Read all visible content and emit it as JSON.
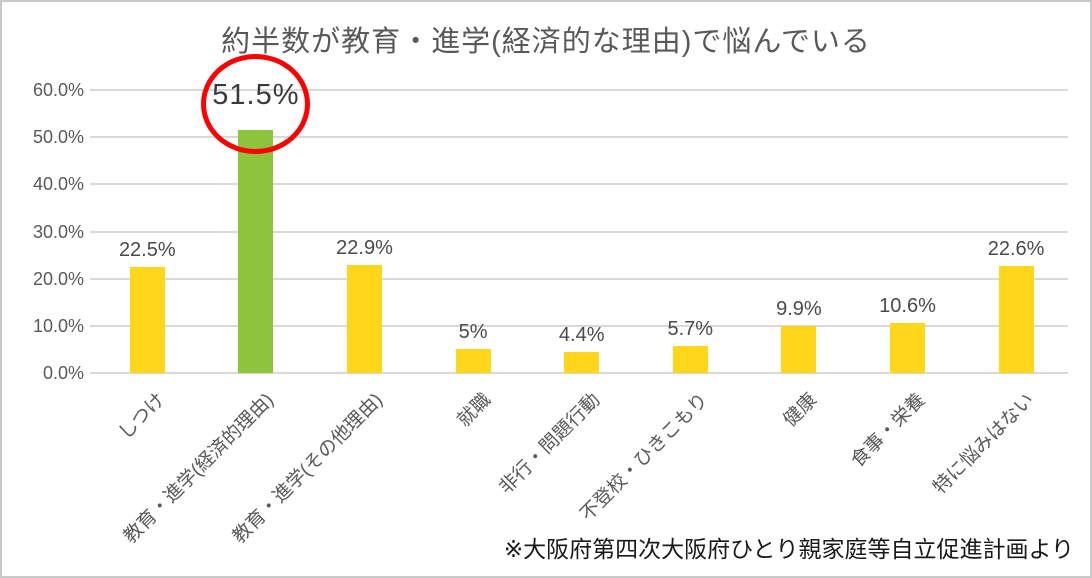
{
  "title": "約半数が教育・進学(経済的な理由)で悩んでいる",
  "footnote": "※大阪府第四次大阪府ひとり親家庭等自立促進計画より",
  "colors": {
    "bar_default": "#ffd619",
    "bar_highlight": "#8cc43c",
    "annotation_circle": "#fe0000",
    "gridline": "#d9d9d9",
    "axis_text": "#595959",
    "value_label_text": "#4a4a4a",
    "title_text": "#595959",
    "footnote_text": "#1a1a1a",
    "background": "#ffffff"
  },
  "chart_data": {
    "type": "bar",
    "title": "約半数が教育・進学(経済的な理由)で悩んでいる",
    "xlabel": "",
    "ylabel": "",
    "categories": [
      "しつけ",
      "教育・進学(経済的理由)",
      "教育・進学(その他理由)",
      "就職",
      "非行・問題行動",
      "不登校・ひきこもり",
      "健康",
      "食事・栄養",
      "特に悩みはない"
    ],
    "values": [
      22.5,
      51.5,
      22.9,
      5,
      4.4,
      5.7,
      9.9,
      10.6,
      22.6
    ],
    "value_labels": [
      "22.5%",
      "51.5%",
      "22.9%",
      "5%",
      "4.4%",
      "5.7%",
      "9.9%",
      "10.6%",
      "22.6%"
    ],
    "highlight_index": 1,
    "ylim": [
      0,
      60
    ],
    "ytick_step": 10,
    "ytick_labels": [
      "0.0%",
      "10.0%",
      "20.0%",
      "30.0%",
      "40.0%",
      "50.0%",
      "60.0%"
    ],
    "grid": true,
    "legend": false,
    "annotation": "red circle drawn around the 51.5% value label and top of the highlighted green bar",
    "source_note": "※大阪府第四次大阪府ひとり親家庭等自立促進計画より"
  }
}
